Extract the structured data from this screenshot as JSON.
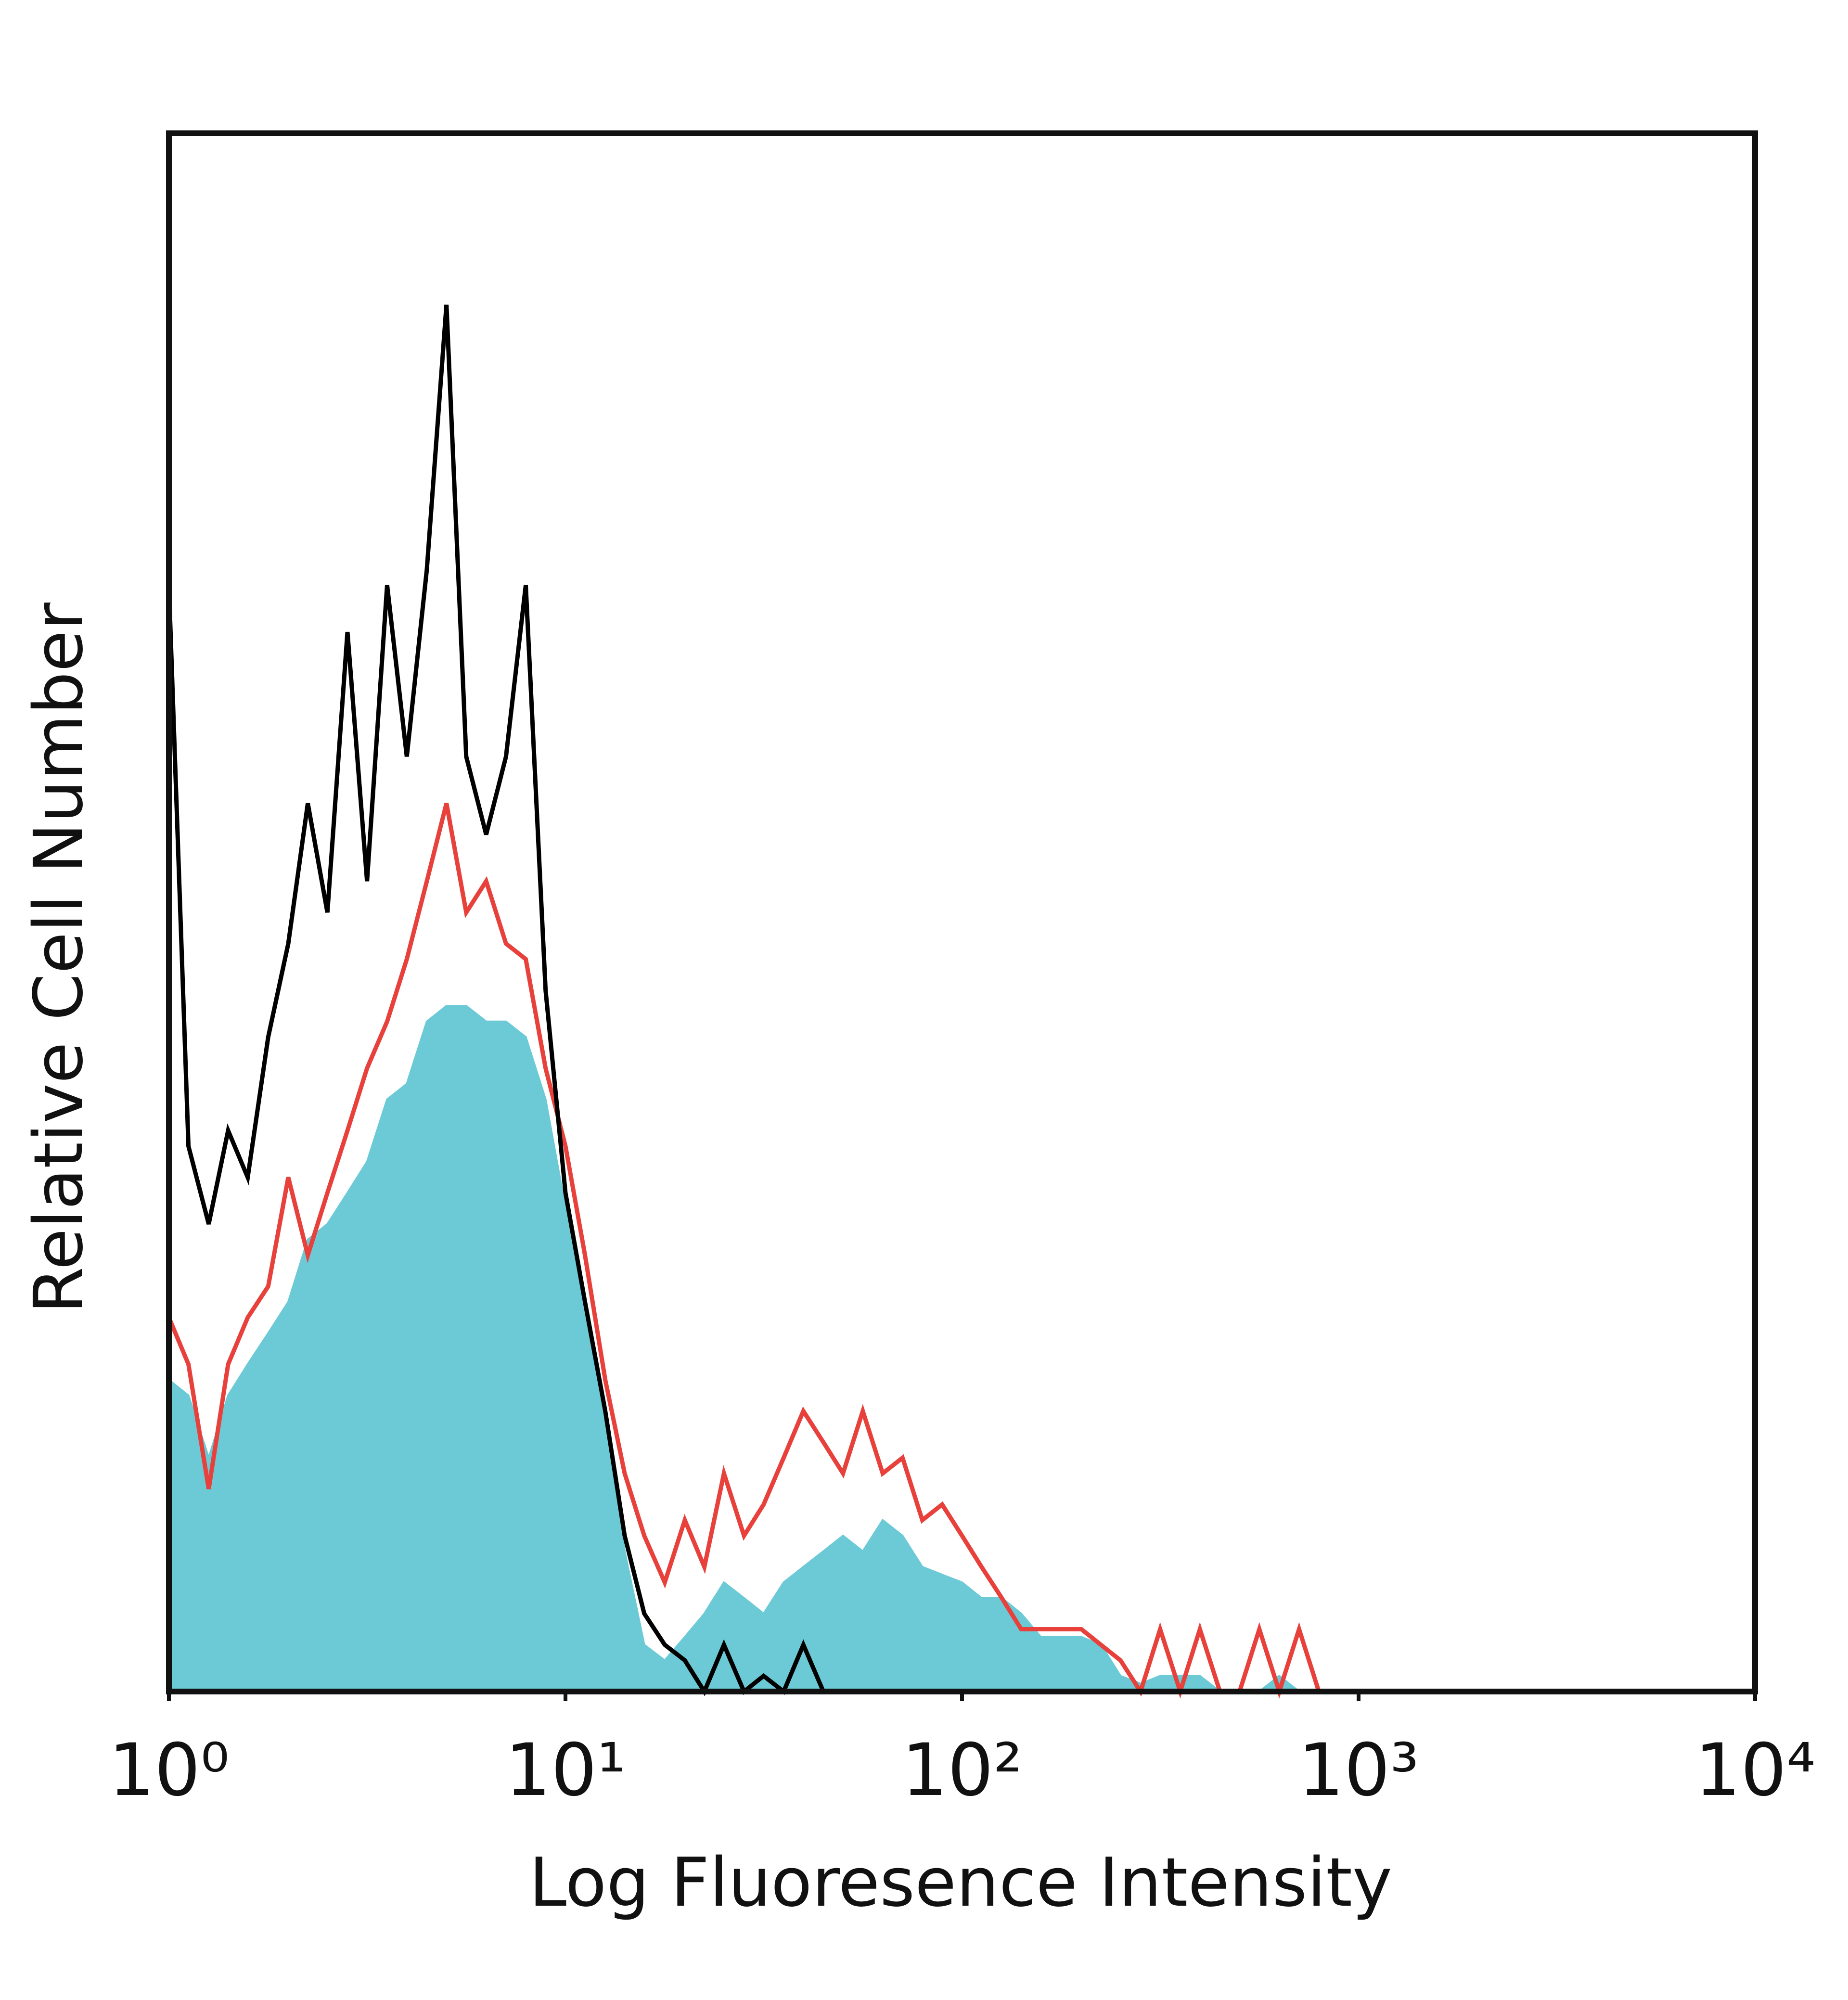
{
  "chart_data": {
    "type": "line",
    "x_label": "Log Fluoresence Intensity",
    "y_label": "Relative Cell Number",
    "log_x": true,
    "xlim": [
      1,
      10000
    ],
    "ylim": [
      0,
      100
    ],
    "xticks": [
      {
        "value": 1,
        "label": "10⁰"
      },
      {
        "value": 10,
        "label": "10¹"
      },
      {
        "value": 100,
        "label": "10²"
      },
      {
        "value": 1000,
        "label": "10³"
      },
      {
        "value": 10000,
        "label": "10⁴"
      }
    ],
    "x": [
      1,
      1.12,
      1.26,
      1.41,
      1.58,
      1.78,
      2,
      2.24,
      2.51,
      2.82,
      3.16,
      3.55,
      3.98,
      4.47,
      5.01,
      5.62,
      6.31,
      7.08,
      7.94,
      8.91,
      10,
      11.2,
      12.6,
      14.1,
      15.8,
      17.8,
      20,
      22.4,
      25.1,
      28.2,
      31.6,
      35.5,
      39.8,
      44.7,
      50.1,
      56.2,
      63.1,
      70.8,
      79.4,
      89.1,
      100,
      112,
      126,
      141,
      158,
      178,
      200,
      224,
      251,
      282,
      316,
      355,
      398,
      447,
      501,
      562,
      631,
      708,
      794,
      891,
      1000
    ],
    "series": [
      {
        "color": "#6ccad6",
        "filled": true,
        "values": [
          20,
          19,
          15,
          19,
          21,
          23,
          25,
          29,
          30,
          32,
          34,
          38,
          39,
          43,
          44,
          44,
          43,
          43,
          42,
          38,
          31,
          25,
          17,
          9,
          3,
          2,
          3.5,
          5,
          7,
          6,
          5,
          7,
          8,
          9,
          10,
          9,
          11,
          10,
          8,
          7.5,
          7,
          6,
          6,
          5,
          3.5,
          3.5,
          3.5,
          3,
          1,
          0.5,
          1,
          1,
          1,
          0,
          0,
          0,
          1,
          0,
          0,
          0,
          0
        ]
      },
      {
        "color": "#e8413c",
        "filled": false,
        "values": [
          24,
          21,
          13,
          21,
          24,
          26,
          33,
          28,
          32,
          36,
          40,
          43,
          47,
          52,
          57,
          50,
          52,
          48,
          47,
          40,
          35,
          28,
          20,
          14,
          10,
          7,
          11,
          8,
          14,
          10,
          12,
          15,
          18,
          16,
          14,
          18,
          14,
          15,
          11,
          12,
          10,
          8,
          6,
          4,
          4,
          4,
          4,
          3,
          2,
          0,
          4,
          0,
          4,
          0,
          0,
          4,
          0,
          4,
          0,
          0,
          0
        ]
      },
      {
        "color": "#000000",
        "filled": false,
        "values": [
          71,
          35,
          30,
          36,
          33,
          42,
          48,
          57,
          50,
          68,
          52,
          71,
          60,
          72,
          89,
          60,
          55,
          60,
          71,
          45,
          32,
          25,
          18,
          10,
          5,
          3,
          2,
          0,
          3,
          0,
          1,
          0,
          3,
          0,
          0,
          0,
          0,
          0,
          0,
          0,
          0,
          0,
          0,
          0,
          0,
          0,
          0,
          0,
          0,
          0,
          0,
          0,
          0,
          0,
          0,
          0,
          0,
          0,
          0,
          0,
          0
        ]
      }
    ]
  }
}
